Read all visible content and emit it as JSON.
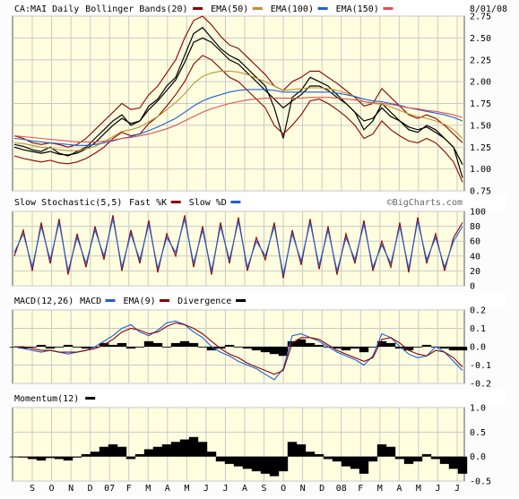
{
  "chart_data": [
    {
      "type": "line",
      "panel": "price",
      "header": {
        "symbol": "CA:MAI Daily",
        "indicators": [
          {
            "label": "Bollinger Bands(20)",
            "color": "#8b0000"
          },
          {
            "label": "EMA(50)",
            "color": "#c09030"
          },
          {
            "label": "EMA(100)",
            "color": "#1f5fd8"
          },
          {
            "label": "EMA(150)",
            "color": "#e05050"
          }
        ],
        "date": "8/01/08"
      },
      "ylim": [
        0.75,
        2.75
      ],
      "y_ticks": [
        "0.75",
        "1.00",
        "1.25",
        "1.50",
        "1.75",
        "2.00",
        "2.25",
        "2.50",
        "2.75"
      ],
      "x_labels": [
        "S",
        "O",
        "N",
        "D",
        "07",
        "F",
        "M",
        "A",
        "M",
        "J",
        "J",
        "A",
        "S",
        "O",
        "N",
        "D",
        "08",
        "F",
        "M",
        "A",
        "M",
        "J",
        "J"
      ],
      "grid": true,
      "series": [
        {
          "color": "#000000",
          "values": [
            1.28,
            1.26,
            1.22,
            1.2,
            1.25,
            1.18,
            1.15,
            1.2,
            1.25,
            1.35,
            1.45,
            1.55,
            1.62,
            1.5,
            1.55,
            1.72,
            1.8,
            1.95,
            2.05,
            2.3,
            2.55,
            2.62,
            2.5,
            2.38,
            2.3,
            2.25,
            2.15,
            2.05,
            1.95,
            1.7,
            1.35,
            1.82,
            1.9,
            2.05,
            2.0,
            1.95,
            1.85,
            1.75,
            1.65,
            1.45,
            1.55,
            1.75,
            1.65,
            1.55,
            1.45,
            1.42,
            1.5,
            1.45,
            1.35,
            1.25,
            0.9
          ]
        },
        {
          "color": "#000000",
          "values": [
            1.25,
            1.22,
            1.2,
            1.18,
            1.2,
            1.17,
            1.16,
            1.18,
            1.23,
            1.3,
            1.4,
            1.5,
            1.58,
            1.52,
            1.55,
            1.68,
            1.78,
            1.9,
            2.02,
            2.22,
            2.45,
            2.5,
            2.45,
            2.35,
            2.25,
            2.2,
            2.1,
            2.0,
            1.9,
            1.8,
            1.7,
            1.78,
            1.85,
            1.95,
            1.95,
            1.9,
            1.82,
            1.75,
            1.65,
            1.55,
            1.58,
            1.7,
            1.6,
            1.55,
            1.48,
            1.45,
            1.48,
            1.42,
            1.35,
            1.25,
            1.05
          ]
        },
        {
          "color": "#8b0000",
          "values": [
            1.38,
            1.35,
            1.3,
            1.28,
            1.3,
            1.28,
            1.25,
            1.28,
            1.35,
            1.45,
            1.55,
            1.65,
            1.75,
            1.68,
            1.7,
            1.85,
            1.95,
            2.1,
            2.25,
            2.5,
            2.7,
            2.75,
            2.65,
            2.52,
            2.42,
            2.38,
            2.28,
            2.18,
            2.08,
            1.95,
            1.9,
            2.0,
            2.05,
            2.12,
            2.12,
            2.05,
            1.98,
            1.9,
            1.82,
            1.72,
            1.75,
            1.92,
            1.82,
            1.72,
            1.62,
            1.58,
            1.62,
            1.58,
            1.5,
            1.4,
            1.3
          ]
        },
        {
          "color": "#8b0000",
          "values": [
            1.15,
            1.12,
            1.1,
            1.08,
            1.1,
            1.07,
            1.06,
            1.08,
            1.12,
            1.18,
            1.25,
            1.35,
            1.42,
            1.38,
            1.4,
            1.52,
            1.6,
            1.72,
            1.85,
            2.0,
            2.2,
            2.3,
            2.25,
            2.15,
            2.05,
            2.0,
            1.9,
            1.8,
            1.7,
            1.5,
            1.4,
            1.5,
            1.62,
            1.78,
            1.8,
            1.75,
            1.68,
            1.6,
            1.5,
            1.35,
            1.4,
            1.55,
            1.45,
            1.38,
            1.32,
            1.3,
            1.35,
            1.3,
            1.2,
            1.08,
            0.85
          ]
        },
        {
          "color": "#c09030",
          "values": [
            1.3,
            1.29,
            1.27,
            1.25,
            1.24,
            1.22,
            1.21,
            1.21,
            1.23,
            1.26,
            1.31,
            1.37,
            1.43,
            1.45,
            1.48,
            1.54,
            1.6,
            1.68,
            1.76,
            1.86,
            1.98,
            2.06,
            2.1,
            2.12,
            2.12,
            2.11,
            2.08,
            2.04,
            2.0,
            1.95,
            1.9,
            1.91,
            1.92,
            1.93,
            1.93,
            1.92,
            1.9,
            1.87,
            1.83,
            1.77,
            1.75,
            1.74,
            1.71,
            1.67,
            1.63,
            1.6,
            1.58,
            1.55,
            1.51,
            1.45,
            1.35
          ]
        },
        {
          "color": "#1f5fd8",
          "values": [
            1.35,
            1.34,
            1.32,
            1.31,
            1.3,
            1.29,
            1.28,
            1.27,
            1.27,
            1.28,
            1.3,
            1.32,
            1.35,
            1.37,
            1.4,
            1.44,
            1.48,
            1.53,
            1.58,
            1.65,
            1.72,
            1.78,
            1.82,
            1.85,
            1.88,
            1.9,
            1.91,
            1.91,
            1.91,
            1.9,
            1.88,
            1.88,
            1.88,
            1.88,
            1.88,
            1.88,
            1.87,
            1.85,
            1.83,
            1.8,
            1.78,
            1.77,
            1.75,
            1.73,
            1.7,
            1.68,
            1.66,
            1.64,
            1.62,
            1.59,
            1.55
          ]
        },
        {
          "color": "#e05050",
          "values": [
            1.38,
            1.37,
            1.36,
            1.35,
            1.34,
            1.33,
            1.32,
            1.31,
            1.31,
            1.31,
            1.32,
            1.33,
            1.35,
            1.36,
            1.38,
            1.4,
            1.43,
            1.46,
            1.5,
            1.55,
            1.6,
            1.65,
            1.69,
            1.72,
            1.75,
            1.77,
            1.79,
            1.8,
            1.81,
            1.81,
            1.81,
            1.81,
            1.81,
            1.82,
            1.82,
            1.82,
            1.81,
            1.8,
            1.79,
            1.77,
            1.76,
            1.75,
            1.74,
            1.72,
            1.7,
            1.69,
            1.67,
            1.66,
            1.64,
            1.62,
            1.59
          ]
        }
      ]
    },
    {
      "type": "line",
      "panel": "stochastic",
      "header": {
        "label": "Slow Stochastic(5,5)",
        "indicators": [
          {
            "label": "Fast %K",
            "color": "#8b0000"
          },
          {
            "label": "Slow %D",
            "color": "#1f5fd8"
          }
        ],
        "watermark": "©BigCharts.com"
      },
      "ylim": [
        0,
        100
      ],
      "y_ticks": [
        "0",
        "20",
        "40",
        "60",
        "80",
        "100"
      ],
      "grid": true,
      "series": [
        {
          "color": "#8b0000",
          "values": [
            40,
            75,
            20,
            85,
            30,
            90,
            15,
            70,
            25,
            80,
            35,
            95,
            20,
            75,
            30,
            88,
            18,
            70,
            40,
            95,
            25,
            80,
            15,
            85,
            30,
            92,
            20,
            65,
            35,
            85,
            10,
            75,
            28,
            90,
            22,
            80,
            15,
            70,
            30,
            88,
            20,
            60,
            25,
            85,
            18,
            92,
            30,
            70,
            20,
            65,
            85
          ]
        },
        {
          "color": "#1f5fd8",
          "values": [
            45,
            70,
            25,
            80,
            35,
            85,
            20,
            65,
            30,
            75,
            40,
            90,
            25,
            70,
            35,
            83,
            23,
            65,
            45,
            90,
            30,
            75,
            20,
            80,
            35,
            87,
            25,
            60,
            40,
            80,
            15,
            70,
            33,
            85,
            27,
            75,
            20,
            65,
            35,
            83,
            25,
            55,
            30,
            80,
            23,
            87,
            35,
            65,
            25,
            60,
            80
          ]
        }
      ]
    },
    {
      "type": "area",
      "panel": "macd",
      "header": {
        "label": "MACD(12,26)",
        "indicators": [
          {
            "label": "MACD",
            "color": "#1f5fd8"
          },
          {
            "label": "EMA(9)",
            "color": "#8b0000"
          },
          {
            "label": "Divergence",
            "color": "#000000"
          }
        ]
      },
      "ylim": [
        -0.2,
        0.2
      ],
      "y_ticks": [
        "-0.2",
        "-0.1",
        "0.0",
        "0.1",
        "0.2"
      ],
      "grid": true,
      "series": [
        {
          "color": "#000000",
          "values": [
            0.0,
            -0.01,
            0.0,
            0.01,
            -0.01,
            0.0,
            0.01,
            0.0,
            -0.01,
            0.0,
            0.02,
            0.01,
            0.02,
            -0.01,
            0.0,
            0.03,
            0.02,
            0.0,
            0.02,
            0.03,
            0.02,
            0.0,
            -0.02,
            -0.01,
            0.01,
            0.0,
            -0.01,
            -0.02,
            -0.03,
            -0.04,
            -0.05,
            0.03,
            0.04,
            0.02,
            0.01,
            0.0,
            -0.01,
            -0.02,
            -0.01,
            -0.03,
            0.0,
            0.03,
            0.02,
            -0.01,
            -0.02,
            0.0,
            0.01,
            0.0,
            -0.01,
            -0.02,
            -0.02
          ]
        },
        {
          "color": "#1f5fd8",
          "values": [
            0.0,
            -0.01,
            -0.02,
            -0.03,
            -0.02,
            -0.03,
            -0.04,
            -0.03,
            -0.02,
            0.0,
            0.03,
            0.06,
            0.1,
            0.12,
            0.08,
            0.06,
            0.09,
            0.13,
            0.14,
            0.12,
            0.08,
            0.05,
            0.0,
            -0.03,
            -0.05,
            -0.08,
            -0.1,
            -0.12,
            -0.15,
            -0.18,
            -0.12,
            0.06,
            0.07,
            0.05,
            0.03,
            0.0,
            -0.03,
            -0.05,
            -0.07,
            -0.1,
            -0.05,
            0.07,
            0.05,
            0.0,
            -0.04,
            -0.06,
            -0.05,
            0.0,
            -0.03,
            -0.08,
            -0.13
          ]
        },
        {
          "color": "#8b0000",
          "values": [
            0.0,
            0.0,
            -0.01,
            -0.02,
            -0.02,
            -0.03,
            -0.03,
            -0.03,
            -0.02,
            -0.01,
            0.01,
            0.04,
            0.08,
            0.1,
            0.09,
            0.07,
            0.08,
            0.11,
            0.13,
            0.12,
            0.1,
            0.07,
            0.03,
            -0.01,
            -0.04,
            -0.06,
            -0.09,
            -0.11,
            -0.13,
            -0.15,
            -0.13,
            0.02,
            0.05,
            0.05,
            0.04,
            0.01,
            -0.02,
            -0.04,
            -0.06,
            -0.08,
            -0.06,
            0.04,
            0.05,
            0.02,
            -0.02,
            -0.04,
            -0.05,
            -0.02,
            -0.03,
            -0.06,
            -0.11
          ]
        }
      ]
    },
    {
      "type": "bar",
      "panel": "momentum",
      "header": {
        "label": "Momentum(12)",
        "indicators": [
          {
            "label": "",
            "color": "#000000"
          }
        ]
      },
      "ylim": [
        -0.5,
        1.0
      ],
      "y_ticks": [
        "-0.5",
        "0.0",
        "0.5",
        "1.0"
      ],
      "grid": true,
      "series": [
        {
          "color": "#000000",
          "values": [
            0.0,
            -0.02,
            -0.05,
            -0.08,
            -0.03,
            -0.05,
            -0.08,
            -0.02,
            0.05,
            0.1,
            0.2,
            0.25,
            0.2,
            -0.05,
            0.05,
            0.15,
            0.2,
            0.25,
            0.3,
            0.35,
            0.4,
            0.3,
            0.1,
            -0.1,
            -0.15,
            -0.2,
            -0.25,
            -0.3,
            -0.35,
            -0.4,
            -0.3,
            0.3,
            0.25,
            0.1,
            0.05,
            -0.05,
            -0.1,
            -0.2,
            -0.25,
            -0.35,
            -0.1,
            0.25,
            0.2,
            -0.05,
            -0.15,
            -0.1,
            0.05,
            -0.05,
            -0.15,
            -0.25,
            -0.35
          ]
        }
      ]
    }
  ]
}
